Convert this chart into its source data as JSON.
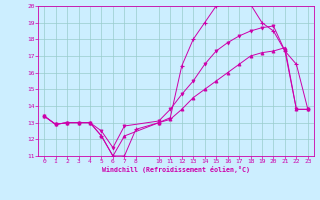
{
  "bg_color": "#cceeff",
  "grid_color": "#99cccc",
  "line_color": "#cc00aa",
  "xlim": [
    -0.5,
    23.5
  ],
  "ylim": [
    11,
    20
  ],
  "xticks": [
    0,
    1,
    2,
    3,
    4,
    5,
    6,
    7,
    8,
    10,
    11,
    12,
    13,
    14,
    15,
    16,
    17,
    18,
    19,
    20,
    21,
    22,
    23
  ],
  "yticks": [
    11,
    12,
    13,
    14,
    15,
    16,
    17,
    18,
    19,
    20
  ],
  "xlabel": "Windchill (Refroidissement éolien,°C)",
  "line1_x": [
    0,
    1,
    2,
    3,
    4,
    5,
    6,
    7,
    8,
    10,
    11,
    12,
    13,
    14,
    15,
    16,
    17,
    18,
    19,
    20,
    21,
    22,
    23
  ],
  "line1_y": [
    13.4,
    12.9,
    13.0,
    13.0,
    13.0,
    12.2,
    11.0,
    11.0,
    12.6,
    13.0,
    13.3,
    16.4,
    18.0,
    19.0,
    20.0,
    20.1,
    20.2,
    20.1,
    19.0,
    18.5,
    17.3,
    16.5,
    13.8
  ],
  "line2_x": [
    0,
    1,
    2,
    3,
    4,
    5,
    6,
    7,
    10,
    11,
    12,
    13,
    14,
    15,
    16,
    17,
    18,
    19,
    20,
    21,
    22,
    23
  ],
  "line2_y": [
    13.4,
    12.9,
    13.0,
    13.0,
    13.0,
    12.5,
    11.5,
    12.8,
    13.1,
    13.8,
    14.7,
    15.5,
    16.5,
    17.3,
    17.8,
    18.2,
    18.5,
    18.7,
    18.8,
    17.3,
    13.8,
    13.8
  ],
  "line3_x": [
    0,
    1,
    2,
    3,
    4,
    5,
    6,
    7,
    10,
    11,
    12,
    13,
    14,
    15,
    16,
    17,
    18,
    19,
    20,
    21,
    22,
    23
  ],
  "line3_y": [
    13.4,
    12.9,
    13.0,
    13.0,
    13.0,
    12.2,
    11.0,
    12.2,
    13.0,
    13.2,
    13.8,
    14.5,
    15.0,
    15.5,
    16.0,
    16.5,
    17.0,
    17.2,
    17.3,
    17.5,
    13.8,
    13.8
  ]
}
